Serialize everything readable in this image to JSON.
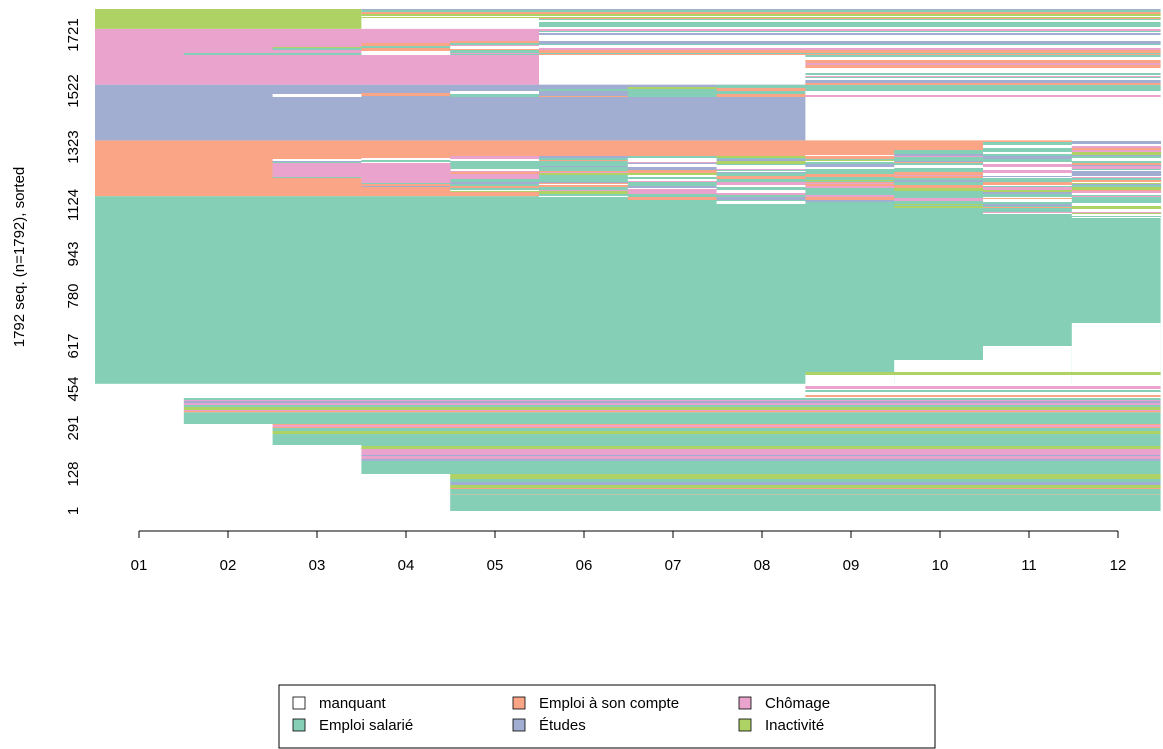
{
  "chart_data": {
    "type": "sequence-index-plot",
    "ylabel": "1792 seq. (n=1792), sorted",
    "x_ticks": [
      "01",
      "02",
      "03",
      "04",
      "05",
      "06",
      "07",
      "08",
      "09",
      "10",
      "11",
      "12"
    ],
    "y_ticks": [
      "1",
      "128",
      "291",
      "454",
      "617",
      "780",
      "943",
      "1124",
      "1323",
      "1522",
      "1721"
    ],
    "n_sequences": 1792,
    "grid": false,
    "legend_position": "bottom",
    "states": [
      {
        "name": "manquant",
        "color": "#ffffff"
      },
      {
        "name": "Emploi salarié",
        "color": "#85cfb6"
      },
      {
        "name": "Emploi à son compte",
        "color": "#f9a586"
      },
      {
        "name": "Études",
        "color": "#a1aed1"
      },
      {
        "name": "Chômage",
        "color": "#e9a3cd"
      },
      {
        "name": "Inactivité",
        "color": "#aed264"
      }
    ],
    "blocks": [
      {
        "state": "Emploi salarié",
        "seq_from": 454,
        "seq_to": 1124,
        "start_month": "01",
        "end_month": "12"
      },
      {
        "state": "Emploi à son compte",
        "seq_from": 1124,
        "seq_to": 1323,
        "start_month": "01",
        "end_month": "12"
      },
      {
        "state": "Études",
        "seq_from": 1323,
        "seq_to": 1522,
        "start_month": "01",
        "end_month": "08"
      },
      {
        "state": "Chômage",
        "seq_from": 1522,
        "seq_to": 1721,
        "start_month": "01",
        "end_month": "05"
      },
      {
        "state": "Inactivité",
        "seq_from": 1721,
        "seq_to": 1792,
        "start_month": "01",
        "end_month": "03"
      },
      {
        "state": "manquant",
        "seq_from": 1,
        "seq_to": 454,
        "start_month": "01",
        "end_month": "04"
      }
    ]
  },
  "legend": {
    "items": [
      {
        "label": "manquant",
        "color": "#ffffff"
      },
      {
        "label": "Emploi salarié",
        "color": "#85cfb6"
      },
      {
        "label": "Emploi à son compte",
        "color": "#f9a586"
      },
      {
        "label": "Études",
        "color": "#a1aed1"
      },
      {
        "label": "Chômage",
        "color": "#e9a3cd"
      },
      {
        "label": "Inactivité",
        "color": "#aed264"
      }
    ]
  }
}
